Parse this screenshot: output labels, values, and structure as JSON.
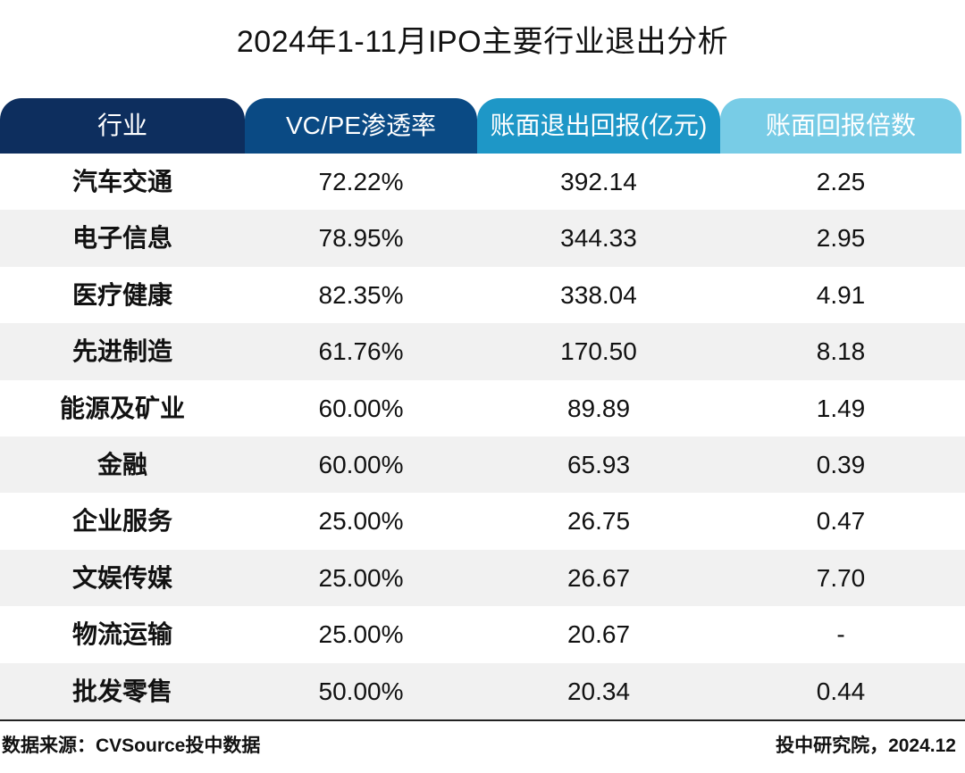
{
  "chart_data": {
    "type": "table",
    "title": "2024年1-11月IPO主要行业退出分析",
    "columns": [
      "行业",
      "VC/PE渗透率",
      "账面退出回报(亿元)",
      "账面回报倍数"
    ],
    "rows": [
      [
        "汽车交通",
        "72.22%",
        "392.14",
        "2.25"
      ],
      [
        "电子信息",
        "78.95%",
        "344.33",
        "2.95"
      ],
      [
        "医疗健康",
        "82.35%",
        "338.04",
        "4.91"
      ],
      [
        "先进制造",
        "61.76%",
        "170.50",
        "8.18"
      ],
      [
        "能源及矿业",
        "60.00%",
        "89.89",
        "1.49"
      ],
      [
        "金融",
        "60.00%",
        "65.93",
        "0.39"
      ],
      [
        "企业服务",
        "25.00%",
        "26.75",
        "0.47"
      ],
      [
        "文娱传媒",
        "25.00%",
        "26.67",
        "7.70"
      ],
      [
        "物流运输",
        "25.00%",
        "20.67",
        "-"
      ],
      [
        "批发零售",
        "50.00%",
        "20.34",
        "0.44"
      ]
    ],
    "header_colors": [
      "#0d2e5e",
      "#0a4a84",
      "#1e97c7",
      "#78cce6"
    ],
    "stripe_color": "#f1f1f1"
  },
  "footer": {
    "source": "数据来源：CVSource投中数据",
    "credit": "投中研究院，2024.12"
  }
}
